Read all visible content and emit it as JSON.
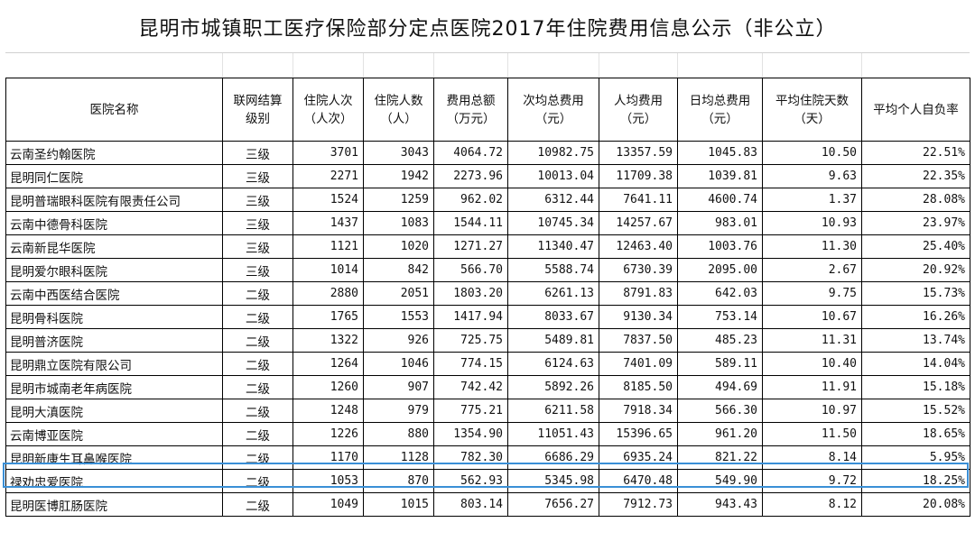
{
  "title": "昆明市城镇职工医疗保险部分定点医院2017年住院费用信息公示（非公立）",
  "table": {
    "headers": [
      "医院名称",
      "联网结算级别",
      "住院人次（人次）",
      "住院人数（人）",
      "费用总额（万元）",
      "次均总费用（元）",
      "人均费用（元）",
      "日均总费用（元）",
      "平均住院天数（天）",
      "平均个人自负率"
    ],
    "rows": [
      [
        "云南圣约翰医院",
        "三级",
        "3701",
        "3043",
        "4064.72",
        "10982.75",
        "13357.59",
        "1045.83",
        "10.50",
        "22.51%"
      ],
      [
        "昆明同仁医院",
        "三级",
        "2271",
        "1942",
        "2273.96",
        "10013.04",
        "11709.38",
        "1039.81",
        "9.63",
        "22.35%"
      ],
      [
        "昆明普瑞眼科医院有限责任公司",
        "三级",
        "1524",
        "1259",
        "962.02",
        "6312.44",
        "7641.11",
        "4600.74",
        "1.37",
        "28.08%"
      ],
      [
        "云南中德骨科医院",
        "三级",
        "1437",
        "1083",
        "1544.11",
        "10745.34",
        "14257.67",
        "983.01",
        "10.93",
        "23.97%"
      ],
      [
        "云南新昆华医院",
        "三级",
        "1121",
        "1020",
        "1271.27",
        "11340.47",
        "12463.40",
        "1003.76",
        "11.30",
        "25.40%"
      ],
      [
        "昆明爱尔眼科医院",
        "三级",
        "1014",
        "842",
        "566.70",
        "5588.74",
        "6730.39",
        "2095.00",
        "2.67",
        "20.92%"
      ],
      [
        "云南中西医结合医院",
        "二级",
        "2880",
        "2051",
        "1803.20",
        "6261.13",
        "8791.83",
        "642.03",
        "9.75",
        "15.73%"
      ],
      [
        "昆明骨科医院",
        "二级",
        "1765",
        "1553",
        "1417.94",
        "8033.67",
        "9130.34",
        "753.14",
        "10.67",
        "16.26%"
      ],
      [
        "昆明普济医院",
        "二级",
        "1322",
        "926",
        "725.75",
        "5489.81",
        "7837.50",
        "485.23",
        "11.31",
        "13.74%"
      ],
      [
        "昆明鼎立医院有限公司",
        "二级",
        "1264",
        "1046",
        "774.15",
        "6124.63",
        "7401.09",
        "589.11",
        "10.40",
        "14.04%"
      ],
      [
        "昆明市城南老年病医院",
        "二级",
        "1260",
        "907",
        "742.42",
        "5892.26",
        "8185.50",
        "494.69",
        "11.91",
        "15.18%"
      ],
      [
        "昆明大滇医院",
        "二级",
        "1248",
        "979",
        "775.21",
        "6211.58",
        "7918.34",
        "566.30",
        "10.97",
        "15.52%"
      ],
      [
        "云南博亚医院",
        "二级",
        "1226",
        "880",
        "1354.90",
        "11051.43",
        "15396.65",
        "961.20",
        "11.50",
        "18.65%"
      ],
      [
        "昆明新康生耳鼻喉医院",
        "二级",
        "1170",
        "1128",
        "782.30",
        "6686.29",
        "6935.24",
        "821.22",
        "8.14",
        "5.95%"
      ],
      [
        "禄劝忠爱医院",
        "二级",
        "1053",
        "870",
        "562.93",
        "5345.98",
        "6470.48",
        "549.90",
        "9.72",
        "18.25%"
      ],
      [
        "昆明医博肛肠医院",
        "二级",
        "1049",
        "1015",
        "803.14",
        "7656.27",
        "7912.73",
        "943.43",
        "8.12",
        "20.08%"
      ]
    ],
    "highlighted_row": 13,
    "highlight_color": "#3a8fd6"
  }
}
